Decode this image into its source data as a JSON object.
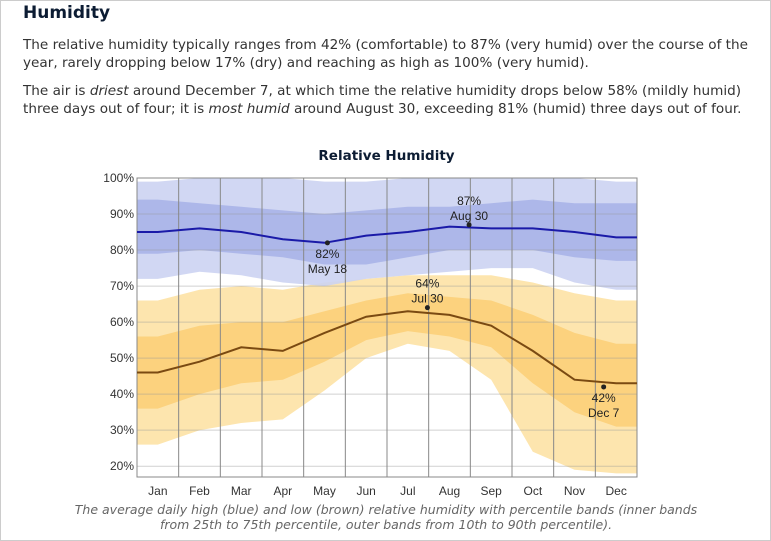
{
  "heading": "Humidity",
  "para1": "The relative humidity typically ranges from 42% (comfortable) to 87% (very humid) over the course of the year, rarely dropping below 17% (dry) and reaching as high as 100% (very humid).",
  "para2_parts": [
    "The air is ",
    "driest",
    " around December 7, at which time the relative humidity drops below 58% (mildly humid) three days out of four; it is ",
    "most humid",
    " around August 30, exceeding 81% (humid) three days out of four."
  ],
  "caption": "The average daily high (blue) and low (brown) relative humidity with percentile bands (inner bands from 25th to 75th percentile, outer bands from 10th to 90th percentile).",
  "chart_data": {
    "type": "area",
    "title": "Relative Humidity",
    "categories": [
      "Jan",
      "Feb",
      "Mar",
      "Apr",
      "May",
      "Jun",
      "Jul",
      "Aug",
      "Sep",
      "Oct",
      "Nov",
      "Dec"
    ],
    "ylim": [
      17,
      100
    ],
    "yticks": [
      "20%",
      "30%",
      "40%",
      "50%",
      "60%",
      "70%",
      "80%",
      "90%",
      "100%"
    ],
    "grid": true,
    "colors": {
      "high_line": "#1a1aa8",
      "high_inner": "#a9b4e8",
      "high_outer": "#ccd3f2",
      "low_line": "#7a4a12",
      "low_inner": "#fcd27e",
      "low_outer": "#fde5ae"
    },
    "series": [
      {
        "key": "high_median",
        "values": [
          85,
          86,
          85,
          83,
          82,
          84,
          85,
          86.5,
          86,
          86,
          85,
          83.5
        ]
      },
      {
        "key": "high_p10",
        "values": [
          72,
          74,
          73,
          71,
          70,
          72,
          73,
          74,
          75,
          75,
          71,
          69
        ]
      },
      {
        "key": "high_p25",
        "values": [
          79,
          80,
          79,
          78,
          76,
          76,
          78,
          80,
          80,
          80,
          78,
          77
        ]
      },
      {
        "key": "high_p75",
        "values": [
          94,
          93,
          92,
          91,
          90,
          91,
          92,
          92,
          93,
          94,
          93,
          93
        ]
      },
      {
        "key": "high_p90",
        "values": [
          99,
          100,
          100,
          100,
          99,
          99,
          100,
          100,
          100,
          100,
          100,
          99
        ]
      },
      {
        "key": "low_median",
        "values": [
          46,
          49,
          53,
          52,
          57,
          61.5,
          63,
          62,
          59,
          52,
          44,
          43
        ]
      },
      {
        "key": "low_p10",
        "values": [
          26,
          30,
          32,
          33,
          41,
          50,
          54,
          52,
          44,
          24,
          19,
          18
        ]
      },
      {
        "key": "low_p25",
        "values": [
          36,
          40,
          43,
          44,
          49,
          55,
          57.5,
          56,
          53,
          43,
          35,
          31
        ]
      },
      {
        "key": "low_p75",
        "values": [
          56,
          59,
          60,
          60,
          63,
          66,
          68,
          67,
          66,
          62,
          57,
          54
        ]
      },
      {
        "key": "low_p90",
        "values": [
          66,
          69,
          70,
          69,
          71,
          72,
          73,
          73,
          73,
          71,
          68,
          66
        ]
      }
    ],
    "annotations": [
      {
        "value": "87%",
        "date": "Aug 30",
        "month": 7.97,
        "y": 87,
        "pos": "above"
      },
      {
        "value": "82%",
        "date": "May 18",
        "month": 4.57,
        "y": 82,
        "pos": "below"
      },
      {
        "value": "64%",
        "date": "Jul 30",
        "month": 6.97,
        "y": 64,
        "pos": "above"
      },
      {
        "value": "42%",
        "date": "Dec 7",
        "month": 11.2,
        "y": 42,
        "pos": "below"
      }
    ]
  }
}
